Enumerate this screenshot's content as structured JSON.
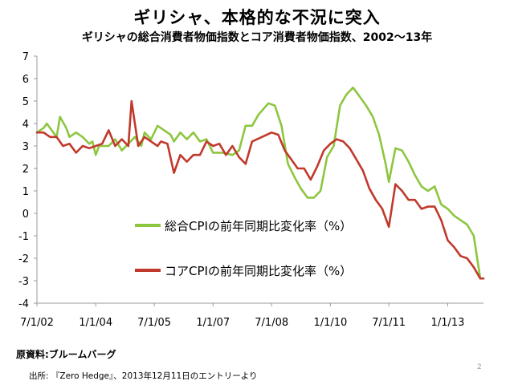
{
  "header": {
    "title": "ギリシャ、本格的な不況に突入",
    "subtitle": "ギリシャの総合消費者物価指数とコア消費者物価指数、2002～13年"
  },
  "footer": {
    "source": "原資料:ブルームバーグ",
    "citation": "出所: 『Zero Hedge』、2013年12月11日のエントリーより",
    "page_number": "2"
  },
  "colors": {
    "headline": "#8dc63f",
    "core": "#c0392b",
    "axis": "#888888"
  },
  "chart_data": {
    "type": "line",
    "title": "",
    "xlabel": "",
    "ylabel": "",
    "ylim": [
      -4,
      7
    ],
    "xlim": [
      "2002-07-01",
      "2013-12-01"
    ],
    "yticks": [
      "7",
      "6",
      "5",
      "4",
      "3",
      "2",
      "1",
      "0",
      "-1",
      "-2",
      "-3",
      "-4"
    ],
    "xticks": [
      {
        "label": "7/1/02",
        "date": "2002-07-01"
      },
      {
        "label": "1/1/04",
        "date": "2004-01-01"
      },
      {
        "label": "7/1/05",
        "date": "2005-07-01"
      },
      {
        "label": "1/1/07",
        "date": "2007-01-01"
      },
      {
        "label": "7/1/08",
        "date": "2008-07-01"
      },
      {
        "label": "1/1/10",
        "date": "2010-01-01"
      },
      {
        "label": "7/1/11",
        "date": "2011-07-01"
      },
      {
        "label": "1/1/13",
        "date": "2013-01-01"
      }
    ],
    "series": [
      {
        "name": "総合CPIの前年同期比変化率（%）",
        "color": "#8dc63f",
        "points": [
          [
            "2002-07-01",
            3.6
          ],
          [
            "2002-09-01",
            3.8
          ],
          [
            "2002-10-01",
            4.0
          ],
          [
            "2002-12-01",
            3.6
          ],
          [
            "2003-01-01",
            3.4
          ],
          [
            "2003-02-01",
            4.3
          ],
          [
            "2003-04-01",
            3.8
          ],
          [
            "2003-05-01",
            3.4
          ],
          [
            "2003-07-01",
            3.6
          ],
          [
            "2003-09-01",
            3.4
          ],
          [
            "2003-11-01",
            3.1
          ],
          [
            "2003-12-01",
            3.2
          ],
          [
            "2004-01-01",
            2.6
          ],
          [
            "2004-02-01",
            3.0
          ],
          [
            "2004-05-01",
            3.0
          ],
          [
            "2004-07-01",
            3.3
          ],
          [
            "2004-09-01",
            2.8
          ],
          [
            "2004-11-01",
            3.1
          ],
          [
            "2005-01-01",
            3.4
          ],
          [
            "2005-03-01",
            3.0
          ],
          [
            "2005-04-01",
            3.6
          ],
          [
            "2005-06-01",
            3.3
          ],
          [
            "2005-08-01",
            3.9
          ],
          [
            "2005-10-01",
            3.7
          ],
          [
            "2005-12-01",
            3.5
          ],
          [
            "2006-01-01",
            3.2
          ],
          [
            "2006-03-01",
            3.6
          ],
          [
            "2006-05-01",
            3.3
          ],
          [
            "2006-07-01",
            3.6
          ],
          [
            "2006-09-01",
            3.2
          ],
          [
            "2006-11-01",
            3.3
          ],
          [
            "2007-01-01",
            2.7
          ],
          [
            "2007-04-01",
            2.7
          ],
          [
            "2007-07-01",
            2.6
          ],
          [
            "2007-09-01",
            2.8
          ],
          [
            "2007-11-01",
            3.9
          ],
          [
            "2008-01-01",
            3.9
          ],
          [
            "2008-03-01",
            4.4
          ],
          [
            "2008-06-01",
            4.9
          ],
          [
            "2008-08-01",
            4.8
          ],
          [
            "2008-10-01",
            3.9
          ],
          [
            "2008-12-01",
            2.2
          ],
          [
            "2009-02-01",
            1.6
          ],
          [
            "2009-04-01",
            1.1
          ],
          [
            "2009-06-01",
            0.7
          ],
          [
            "2009-08-01",
            0.7
          ],
          [
            "2009-10-01",
            1.0
          ],
          [
            "2009-12-01",
            2.5
          ],
          [
            "2010-02-01",
            3.0
          ],
          [
            "2010-04-01",
            4.8
          ],
          [
            "2010-06-01",
            5.3
          ],
          [
            "2010-08-01",
            5.6
          ],
          [
            "2010-10-01",
            5.2
          ],
          [
            "2010-12-01",
            4.8
          ],
          [
            "2011-02-01",
            4.3
          ],
          [
            "2011-04-01",
            3.5
          ],
          [
            "2011-06-01",
            2.2
          ],
          [
            "2011-07-01",
            1.4
          ],
          [
            "2011-09-01",
            2.9
          ],
          [
            "2011-11-01",
            2.8
          ],
          [
            "2012-01-01",
            2.3
          ],
          [
            "2012-03-01",
            1.7
          ],
          [
            "2012-05-01",
            1.2
          ],
          [
            "2012-07-01",
            1.0
          ],
          [
            "2012-09-01",
            1.2
          ],
          [
            "2012-11-01",
            0.4
          ],
          [
            "2013-01-01",
            0.2
          ],
          [
            "2013-03-01",
            -0.1
          ],
          [
            "2013-05-01",
            -0.3
          ],
          [
            "2013-07-01",
            -0.5
          ],
          [
            "2013-09-01",
            -1.0
          ],
          [
            "2013-11-01",
            -2.9
          ]
        ]
      },
      {
        "name": "コアCPIの前年同期比変化率（%）",
        "color": "#c0392b",
        "points": [
          [
            "2002-07-01",
            3.6
          ],
          [
            "2002-09-01",
            3.6
          ],
          [
            "2002-11-01",
            3.4
          ],
          [
            "2003-01-01",
            3.4
          ],
          [
            "2003-03-01",
            3.0
          ],
          [
            "2003-05-01",
            3.1
          ],
          [
            "2003-07-01",
            2.7
          ],
          [
            "2003-09-01",
            3.0
          ],
          [
            "2003-11-01",
            2.9
          ],
          [
            "2004-01-01",
            3.0
          ],
          [
            "2004-03-01",
            3.1
          ],
          [
            "2004-05-01",
            3.7
          ],
          [
            "2004-07-01",
            3.0
          ],
          [
            "2004-09-01",
            3.3
          ],
          [
            "2004-11-01",
            3.0
          ],
          [
            "2004-12-01",
            5.0
          ],
          [
            "2005-02-01",
            3.0
          ],
          [
            "2005-04-01",
            3.4
          ],
          [
            "2005-06-01",
            3.2
          ],
          [
            "2005-08-01",
            3.0
          ],
          [
            "2005-09-01",
            3.2
          ],
          [
            "2005-11-01",
            3.1
          ],
          [
            "2006-01-01",
            1.8
          ],
          [
            "2006-03-01",
            2.6
          ],
          [
            "2006-05-01",
            2.3
          ],
          [
            "2006-07-01",
            2.6
          ],
          [
            "2006-09-01",
            2.6
          ],
          [
            "2006-11-01",
            3.2
          ],
          [
            "2007-01-01",
            3.0
          ],
          [
            "2007-03-01",
            3.1
          ],
          [
            "2007-05-01",
            2.6
          ],
          [
            "2007-07-01",
            3.0
          ],
          [
            "2007-09-01",
            2.5
          ],
          [
            "2007-11-01",
            2.2
          ],
          [
            "2008-01-01",
            3.2
          ],
          [
            "2008-04-01",
            3.4
          ],
          [
            "2008-07-01",
            3.6
          ],
          [
            "2008-09-01",
            3.5
          ],
          [
            "2008-11-01",
            2.8
          ],
          [
            "2009-01-01",
            2.4
          ],
          [
            "2009-03-01",
            2.0
          ],
          [
            "2009-05-01",
            2.0
          ],
          [
            "2009-07-01",
            1.5
          ],
          [
            "2009-09-01",
            2.1
          ],
          [
            "2009-11-01",
            2.8
          ],
          [
            "2010-01-01",
            3.1
          ],
          [
            "2010-03-01",
            3.3
          ],
          [
            "2010-05-01",
            3.2
          ],
          [
            "2010-07-01",
            2.9
          ],
          [
            "2010-09-01",
            2.4
          ],
          [
            "2010-11-01",
            1.9
          ],
          [
            "2011-01-01",
            1.1
          ],
          [
            "2011-03-01",
            0.6
          ],
          [
            "2011-05-01",
            0.2
          ],
          [
            "2011-07-01",
            -0.6
          ],
          [
            "2011-09-01",
            1.3
          ],
          [
            "2011-11-01",
            1.0
          ],
          [
            "2012-01-01",
            0.6
          ],
          [
            "2012-03-01",
            0.6
          ],
          [
            "2012-05-01",
            0.2
          ],
          [
            "2012-07-01",
            0.3
          ],
          [
            "2012-09-01",
            0.3
          ],
          [
            "2012-11-01",
            -0.3
          ],
          [
            "2013-01-01",
            -1.2
          ],
          [
            "2013-03-01",
            -1.5
          ],
          [
            "2013-05-01",
            -1.9
          ],
          [
            "2013-07-01",
            -2.0
          ],
          [
            "2013-09-01",
            -2.4
          ],
          [
            "2013-11-01",
            -2.9
          ],
          [
            "2013-12-01",
            -2.9
          ]
        ]
      }
    ]
  }
}
